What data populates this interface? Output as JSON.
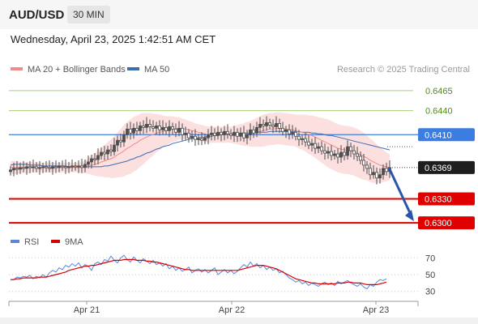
{
  "header": {
    "symbol": "AUD/USD",
    "timeframe": "30 MIN"
  },
  "timestamp": "Wednesday, April 23, 2025 1:42:51 AM CET",
  "legend": {
    "ma20_label": "MA 20 + Bollinger Bands",
    "ma50_label": "MA 50"
  },
  "attribution": "Research © 2025 Trading Central",
  "rsi_legend": {
    "rsi_label": "RSI",
    "ma_label": "9MA"
  },
  "colors": {
    "up": "#4d4d4d",
    "down": "#ffffff",
    "outline": "#4d4d4d",
    "ma20": "#f08a8a",
    "ma50": "#3d6eb4",
    "bband": "#fbd9d9",
    "green_level": "#a6cf7d",
    "pivot": "#3b7de0",
    "support": "#e00000",
    "price_label": "#1e1e1e",
    "arrow": "#2a56a8",
    "rsi": "#5b86d6",
    "rsi_ma": "#d60000"
  },
  "chart_data": {
    "type": "candlestick",
    "y_range": [
      0.6285,
      0.6482
    ],
    "levels": [
      {
        "value": 0.6465,
        "label": "0.6465",
        "kind": "target"
      },
      {
        "value": 0.644,
        "label": "0.6440",
        "kind": "target"
      },
      {
        "value": 0.641,
        "label": "0.6410",
        "kind": "pivot"
      },
      {
        "value": 0.6369,
        "label": "0.6369",
        "kind": "last"
      },
      {
        "value": 0.633,
        "label": "0.6330",
        "kind": "support"
      },
      {
        "value": 0.63,
        "label": "0.6300",
        "kind": "support"
      }
    ],
    "x_ticks": [
      "Apr 21",
      "Apr 22",
      "Apr 23"
    ],
    "close": [
      0.6366,
      0.6368,
      0.6367,
      0.6369,
      0.6368,
      0.637,
      0.6369,
      0.637,
      0.6368,
      0.6369,
      0.637,
      0.6369,
      0.6368,
      0.637,
      0.6369,
      0.6371,
      0.637,
      0.6369,
      0.637,
      0.6371,
      0.637,
      0.6371,
      0.6369,
      0.6373,
      0.6376,
      0.638,
      0.6379,
      0.6384,
      0.6388,
      0.6386,
      0.6391,
      0.6389,
      0.6397,
      0.6403,
      0.6401,
      0.641,
      0.6417,
      0.6412,
      0.6418,
      0.6415,
      0.6421,
      0.6419,
      0.6423,
      0.642,
      0.6418,
      0.6421,
      0.6416,
      0.6419,
      0.6415,
      0.642,
      0.6417,
      0.6413,
      0.6418,
      0.641,
      0.6412,
      0.6406,
      0.6408,
      0.6404,
      0.6405,
      0.6403,
      0.6406,
      0.641,
      0.6412,
      0.6409,
      0.6413,
      0.641,
      0.6414,
      0.6411,
      0.6409,
      0.6413,
      0.6408,
      0.6412,
      0.6406,
      0.641,
      0.6416,
      0.6412,
      0.6419,
      0.6423,
      0.6421,
      0.6425,
      0.6422,
      0.642,
      0.6424,
      0.6418,
      0.6414,
      0.6416,
      0.6411,
      0.6413,
      0.6408,
      0.6404,
      0.6405,
      0.6401,
      0.6397,
      0.6399,
      0.6393,
      0.6395,
      0.639,
      0.6387,
      0.6389,
      0.6384,
      0.6386,
      0.6382,
      0.6388,
      0.6384,
      0.6395,
      0.639,
      0.6386,
      0.6383,
      0.6378,
      0.6372,
      0.6368,
      0.636,
      0.6363,
      0.6356,
      0.636,
      0.6368,
      0.6364,
      0.6369
    ],
    "ma20": [
      0.6369,
      0.6369,
      0.6369,
      0.6369,
      0.6369,
      0.6369,
      0.6369,
      0.6369,
      0.6369,
      0.6369,
      0.6369,
      0.6369,
      0.6369,
      0.6369,
      0.6369,
      0.6369,
      0.6369,
      0.6369,
      0.6369,
      0.6369,
      0.6369,
      0.6369,
      0.6369,
      0.637,
      0.6371,
      0.6372,
      0.6373,
      0.6374,
      0.6376,
      0.6377,
      0.6379,
      0.638,
      0.6382,
      0.6385,
      0.6387,
      0.639,
      0.6393,
      0.6395,
      0.6398,
      0.64,
      0.6403,
      0.6405,
      0.6407,
      0.6409,
      0.641,
      0.6412,
      0.6413,
      0.6414,
      0.6415,
      0.6416,
      0.6417,
      0.6417,
      0.6418,
      0.6417,
      0.6417,
      0.6416,
      0.6415,
      0.6414,
      0.6413,
      0.6412,
      0.6411,
      0.641,
      0.641,
      0.641,
      0.641,
      0.641,
      0.641,
      0.641,
      0.641,
      0.641,
      0.641,
      0.641,
      0.641,
      0.6411,
      0.6411,
      0.6412,
      0.6413,
      0.6414,
      0.6415,
      0.6416,
      0.6417,
      0.6417,
      0.6418,
      0.6418,
      0.6417,
      0.6417,
      0.6416,
      0.6416,
      0.6415,
      0.6414,
      0.6413,
      0.6412,
      0.641,
      0.6409,
      0.6407,
      0.6405,
      0.6403,
      0.6401,
      0.6399,
      0.6397,
      0.6395,
      0.6393,
      0.6392,
      0.6391,
      0.6391,
      0.639,
      0.6389,
      0.6387,
      0.6385,
      0.6383,
      0.6381,
      0.6378,
      0.6376,
      0.6374,
      0.6372,
      0.6371,
      0.637,
      0.6369
    ],
    "ma50": [
      0.6372,
      0.6373,
      0.6373,
      0.6373,
      0.6373,
      0.6373,
      0.6372,
      0.6372,
      0.6372,
      0.6372,
      0.6371,
      0.6371,
      0.6371,
      0.6371,
      0.6371,
      0.6371,
      0.6371,
      0.6371,
      0.637,
      0.637,
      0.637,
      0.637,
      0.637,
      0.637,
      0.637,
      0.637,
      0.637,
      0.637,
      0.637,
      0.6371,
      0.6371,
      0.6372,
      0.6373,
      0.6374,
      0.6375,
      0.6376,
      0.6377,
      0.6379,
      0.638,
      0.6382,
      0.6383,
      0.6385,
      0.6387,
      0.6388,
      0.639,
      0.6392,
      0.6393,
      0.6395,
      0.6396,
      0.6397,
      0.6399,
      0.64,
      0.6401,
      0.6402,
      0.6403,
      0.6404,
      0.6405,
      0.6406,
      0.6406,
      0.6407,
      0.6407,
      0.6408,
      0.6408,
      0.6409,
      0.6409,
      0.641,
      0.641,
      0.641,
      0.6411,
      0.6411,
      0.6411,
      0.6412,
      0.6412,
      0.6412,
      0.6412,
      0.6413,
      0.6413,
      0.6413,
      0.6413,
      0.6413,
      0.6414,
      0.6414,
      0.6414,
      0.6414,
      0.6414,
      0.6414,
      0.6414,
      0.6414,
      0.6414,
      0.6414,
      0.6413,
      0.6413,
      0.6413,
      0.6412,
      0.6412,
      0.6411,
      0.6411,
      0.641,
      0.6409,
      0.6409,
      0.6408,
      0.6407,
      0.6406,
      0.6405,
      0.6404,
      0.6403,
      0.6402,
      0.6401,
      0.64,
      0.6399,
      0.6398,
      0.6397,
      0.6396,
      0.6395,
      0.6394,
      0.6393,
      0.6392,
      0.6391
    ],
    "bb_width": [
      0.0008,
      0.0008,
      0.0008,
      0.0007,
      0.0007,
      0.0007,
      0.0007,
      0.0006,
      0.0006,
      0.0006,
      0.0006,
      0.0006,
      0.0006,
      0.0006,
      0.0006,
      0.0006,
      0.0006,
      0.0006,
      0.0006,
      0.0006,
      0.0006,
      0.0006,
      0.0007,
      0.0008,
      0.001,
      0.0012,
      0.0014,
      0.0016,
      0.0018,
      0.002,
      0.0022,
      0.0024,
      0.0026,
      0.0028,
      0.003,
      0.0032,
      0.0033,
      0.0034,
      0.0034,
      0.0034,
      0.0033,
      0.0032,
      0.003,
      0.0028,
      0.0026,
      0.0024,
      0.0022,
      0.002,
      0.0018,
      0.0017,
      0.0016,
      0.0015,
      0.0014,
      0.0013,
      0.0012,
      0.0011,
      0.0011,
      0.001,
      0.001,
      0.001,
      0.001,
      0.001,
      0.001,
      0.001,
      0.001,
      0.001,
      0.001,
      0.001,
      0.001,
      0.0011,
      0.0012,
      0.0013,
      0.0014,
      0.0015,
      0.0016,
      0.0017,
      0.0018,
      0.0019,
      0.002,
      0.002,
      0.002,
      0.002,
      0.002,
      0.002,
      0.002,
      0.002,
      0.002,
      0.002,
      0.002,
      0.0021,
      0.0022,
      0.0023,
      0.0024,
      0.0025,
      0.0026,
      0.0027,
      0.0028,
      0.0029,
      0.003,
      0.003,
      0.003,
      0.003,
      0.003,
      0.003,
      0.003,
      0.003,
      0.003,
      0.003,
      0.003,
      0.0029,
      0.0028,
      0.0027,
      0.0026,
      0.0024,
      0.0022,
      0.002,
      0.0018,
      0.0016
    ],
    "rsi_range": [
      22,
      78
    ],
    "rsi_ticks": [
      70,
      50,
      30
    ],
    "rsi": [
      44,
      44,
      47,
      46,
      48,
      47,
      49,
      45,
      48,
      46,
      50,
      47,
      52,
      55,
      53,
      58,
      56,
      61,
      59,
      63,
      60,
      64,
      58,
      62,
      60,
      55,
      63,
      65,
      62,
      68,
      66,
      72,
      67,
      64,
      70,
      73,
      68,
      65,
      71,
      67,
      64,
      69,
      66,
      63,
      67,
      62,
      64,
      60,
      63,
      57,
      60,
      55,
      58,
      54,
      56,
      59,
      52,
      55,
      57,
      53,
      56,
      52,
      55,
      58,
      50,
      53,
      56,
      52,
      55,
      51,
      54,
      58,
      62,
      59,
      65,
      60,
      63,
      58,
      61,
      56,
      59,
      55,
      57,
      52,
      54,
      50,
      46,
      44,
      41,
      43,
      39,
      41,
      37,
      40,
      38,
      36,
      39,
      41,
      38,
      40,
      37,
      42,
      39,
      41,
      43,
      40,
      38,
      36,
      39,
      35,
      33,
      38,
      36,
      41,
      44,
      43,
      45
    ],
    "rsi_ma": [
      44,
      44,
      45,
      45,
      46,
      46,
      46,
      46,
      46,
      47,
      47,
      47,
      48,
      49,
      50,
      51,
      52,
      53,
      55,
      56,
      57,
      58,
      59,
      60,
      60,
      61,
      61,
      62,
      63,
      64,
      65,
      66,
      67,
      67,
      67,
      68,
      68,
      68,
      68,
      67,
      67,
      67,
      66,
      66,
      65,
      65,
      64,
      63,
      62,
      61,
      60,
      59,
      58,
      57,
      56,
      56,
      55,
      55,
      55,
      55,
      55,
      55,
      55,
      55,
      55,
      55,
      55,
      55,
      55,
      55,
      55,
      56,
      57,
      58,
      59,
      60,
      61,
      61,
      61,
      60,
      59,
      58,
      57,
      55,
      53,
      51,
      49,
      47,
      45,
      44,
      43,
      42,
      41,
      40,
      40,
      39,
      39,
      39,
      39,
      39,
      39,
      40,
      40,
      40,
      41,
      41,
      40,
      40,
      40,
      39,
      38,
      38,
      38,
      38,
      39,
      40,
      41
    ]
  }
}
